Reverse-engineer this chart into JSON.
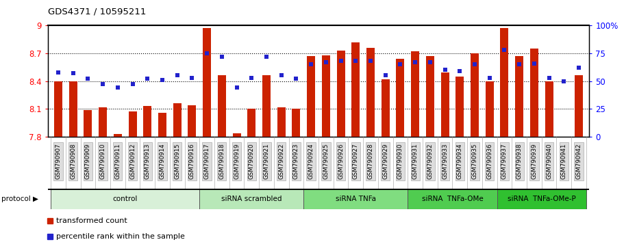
{
  "title": "GDS4371 / 10595211",
  "samples": [
    "GSM790907",
    "GSM790908",
    "GSM790909",
    "GSM790910",
    "GSM790911",
    "GSM790912",
    "GSM790913",
    "GSM790914",
    "GSM790915",
    "GSM790916",
    "GSM790917",
    "GSM790918",
    "GSM790919",
    "GSM790920",
    "GSM790921",
    "GSM790922",
    "GSM790923",
    "GSM790924",
    "GSM790925",
    "GSM790926",
    "GSM790927",
    "GSM790928",
    "GSM790929",
    "GSM790930",
    "GSM790931",
    "GSM790932",
    "GSM790933",
    "GSM790934",
    "GSM790935",
    "GSM790936",
    "GSM790937",
    "GSM790938",
    "GSM790939",
    "GSM790940",
    "GSM790941",
    "GSM790942"
  ],
  "bar_values": [
    8.4,
    8.4,
    8.09,
    8.12,
    7.83,
    8.07,
    8.13,
    8.06,
    8.16,
    8.14,
    8.97,
    8.46,
    7.84,
    8.1,
    8.46,
    8.12,
    8.1,
    8.67,
    8.68,
    8.73,
    8.82,
    8.76,
    8.42,
    8.64,
    8.72,
    8.67,
    8.49,
    8.45,
    8.7,
    8.4,
    8.97,
    8.67,
    8.75,
    8.4,
    7.8,
    8.46
  ],
  "percentile_values": [
    58,
    57,
    52,
    47,
    44,
    47,
    52,
    51,
    55,
    53,
    75,
    72,
    44,
    53,
    72,
    55,
    52,
    65,
    67,
    68,
    68,
    68,
    55,
    65,
    67,
    67,
    60,
    59,
    65,
    53,
    78,
    65,
    66,
    53,
    50,
    62
  ],
  "groups": [
    {
      "label": "control",
      "start": 0,
      "end": 10,
      "color": "#d8f0d8"
    },
    {
      "label": "siRNA scrambled",
      "start": 10,
      "end": 17,
      "color": "#b8e8b8"
    },
    {
      "label": "siRNA TNFa",
      "start": 17,
      "end": 24,
      "color": "#80dd80"
    },
    {
      "label": "siRNA  TNFa-OMe",
      "start": 24,
      "end": 30,
      "color": "#50cc50"
    },
    {
      "label": "siRNA  TNFa-OMe-P",
      "start": 30,
      "end": 36,
      "color": "#30c030"
    }
  ],
  "ylim": [
    7.8,
    9.0
  ],
  "yticks_left": [
    7.8,
    8.1,
    8.4,
    8.7,
    9.0
  ],
  "ytick_labels_left": [
    "7.8",
    "8.1",
    "8.4",
    "8.7",
    "9"
  ],
  "bar_color": "#cc2200",
  "dot_color": "#2222cc",
  "bar_bottom": 7.8,
  "percentile_yticks": [
    0,
    25,
    50,
    75,
    100
  ],
  "percentile_ytick_labels": [
    "0",
    "25",
    "50",
    "75",
    "100%"
  ],
  "grid_lines": [
    8.1,
    8.4,
    8.7
  ],
  "fig_width": 9.3,
  "fig_height": 3.54,
  "dpi": 100
}
